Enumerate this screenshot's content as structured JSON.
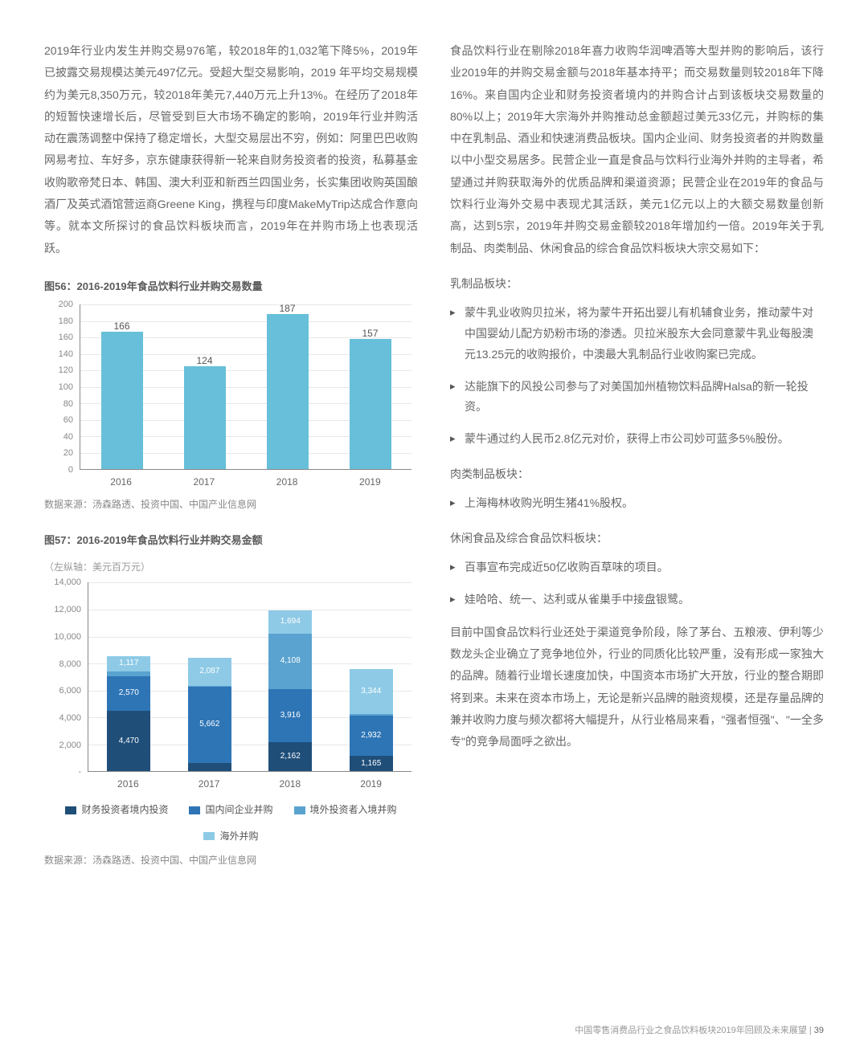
{
  "left": {
    "para1": "2019年行业内发生并购交易976笔，较2018年的1,032笔下降5%，2019年已披露交易规模达美元497亿元。受超大型交易影响，2019 年平均交易规模约为美元8,350万元，较2018年美元7,440万元上升13%。在经历了2018年的短暂快速增长后，尽管受到巨大市场不确定的影响，2019年行业并购活动在震荡调整中保持了稳定增长，大型交易层出不穷，例如：阿里巴巴收购网易考拉、车好多，京东健康获得新一轮来自财务投资者的投资，私募基金收购歌帝梵日本、韩国、澳大利亚和新西兰四国业务，长实集团收购英国酿酒厂及英式酒馆营运商Greene King，携程与印度MakeMyTrip达成合作意向等。就本文所探讨的食品饮料板块而言，2019年在并购市场上也表现活跃。",
    "fig56": {
      "title": "图56：2016-2019年食品饮料行业并购交易数量",
      "type": "bar",
      "categories": [
        "2016",
        "2017",
        "2018",
        "2019"
      ],
      "values": [
        166,
        124,
        187,
        157
      ],
      "bar_color": "#67bfd9",
      "ylim": [
        0,
        200
      ],
      "ytick_step": 20,
      "grid_color": "#e8e8e8",
      "axis_color": "#888888",
      "source": "数据来源：汤森路透、投资中国、中国产业信息网"
    },
    "fig57": {
      "title": "图57：2016-2019年食品饮料行业并购交易金额",
      "subtitle": "（左纵轴：美元百万元）",
      "type": "stacked-bar",
      "categories": [
        "2016",
        "2017",
        "2018",
        "2019"
      ],
      "ylim": [
        0,
        14000
      ],
      "ytick_step": 2000,
      "yticks": [
        "-",
        "2,000",
        "4,000",
        "6,000",
        "8,000",
        "10,000",
        "12,000",
        "14,000"
      ],
      "series": [
        {
          "name": "财务投资者境内投资",
          "color": "#1f4e79",
          "values": [
            4470,
            629,
            2162,
            1165
          ]
        },
        {
          "name": "国内间企业并购",
          "color": "#2e75b6",
          "values": [
            2570,
            5662,
            3916,
            2932
          ]
        },
        {
          "name": "境外投资者入境并购",
          "color": "#5aa3d0",
          "values": [
            353,
            39,
            4108,
            146
          ]
        },
        {
          "name": "海外并购",
          "color": "#8ecae6",
          "values": [
            1117,
            2087,
            1694,
            3344
          ]
        }
      ],
      "source": "数据来源：汤森路透、投资中国、中国产业信息网"
    }
  },
  "right": {
    "para1": "食品饮料行业在剔除2018年喜力收购华润啤酒等大型并购的影响后，该行业2019年的并购交易金额与2018年基本持平；而交易数量则较2018年下降16%。来自国内企业和财务投资者境内的并购合计占到该板块交易数量的80%以上；2019年大宗海外并购推动总金额超过美元33亿元，并购标的集中在乳制品、酒业和快速消费品板块。国内企业间、财务投资者的并购数量以中小型交易居多。民营企业一直是食品与饮料行业海外并购的主导者，希望通过并购获取海外的优质品牌和渠道资源；民营企业在2019年的食品与饮料行业海外交易中表现尤其活跃，美元1亿元以上的大额交易数量创新高，达到5宗，2019年并购交易金额较2018年增加约一倍。2019年关于乳制品、肉类制品、休闲食品的综合食品饮料板块大宗交易如下：",
    "sec1_title": "乳制品板块：",
    "sec1_items": [
      "蒙牛乳业收购贝拉米，将为蒙牛开拓出婴儿有机辅食业务，推动蒙牛对中国婴幼儿配方奶粉市场的渗透。贝拉米股东大会同意蒙牛乳业每股澳元13.25元的收购报价，中澳最大乳制品行业收购案已完成。",
      "达能旗下的风投公司参与了对美国加州植物饮料品牌Halsa的新一轮投资。",
      "蒙牛通过约人民币2.8亿元对价，获得上市公司妙可蓝多5%股份。"
    ],
    "sec2_title": "肉类制品板块：",
    "sec2_items": [
      "上海梅林收购光明生猪41%股权。"
    ],
    "sec3_title": "休闲食品及综合食品饮料板块：",
    "sec3_items": [
      "百事宣布完成近50亿收购百草味的项目。",
      "娃哈哈、统一、达利或从雀巢手中接盘银鹭。"
    ],
    "para2": "目前中国食品饮料行业还处于渠道竞争阶段，除了茅台、五粮液、伊利等少数龙头企业确立了竞争地位外，行业的同质化比较严重，没有形成一家独大的品牌。随着行业增长速度加快，中国资本市场扩大开放，行业的整合期即将到来。未来在资本市场上，无论是新兴品牌的融资规模，还是存量品牌的兼并收购力度与频次都将大幅提升，从行业格局来看，\"强者恒强\"、\"一全多专\"的竞争局面呼之欲出。"
  },
  "footer": {
    "text": "中国零售消费品行业之食品饮料板块2019年回顾及未来展望",
    "page": "39"
  }
}
